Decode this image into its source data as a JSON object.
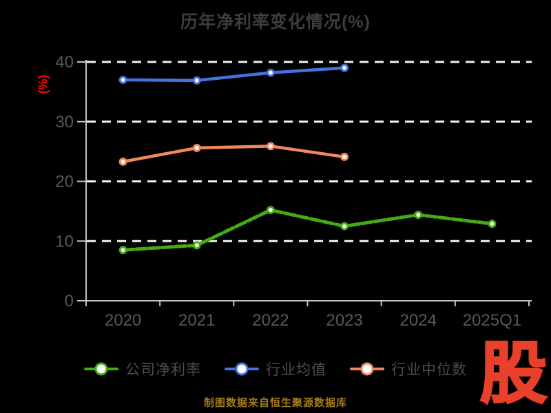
{
  "title": "历年净利率变化情况(%)",
  "y_axis": {
    "label": "(%)"
  },
  "caption": "制图数据来自恒生聚源数据库",
  "logo_text": "股",
  "colors": {
    "background": "#000000",
    "title_text": "#3d3d3d",
    "axis_line": "#c4c4c4",
    "gridline": "#f2f2f2",
    "tick_text": "#585858",
    "legend_text": "#4d4d4d",
    "y_label_red": "#f60505",
    "caption_gold": "#a57b15",
    "logo_red": "#e8402a",
    "marker_fill": "#ffffff"
  },
  "chart_data": {
    "type": "line",
    "title": "历年净利率变化情况(%)",
    "ylabel": "(%)",
    "ylim": [
      0,
      40
    ],
    "yticks": [
      0,
      10,
      20,
      30,
      40
    ],
    "grid": "horizontal dashed white lines at 10,20,30,40",
    "legend_position": "bottom",
    "categories": [
      "2020",
      "2021",
      "2022",
      "2023",
      "2024",
      "2025Q1"
    ],
    "series": [
      {
        "name": "公司净利率",
        "color": "#44aa16",
        "style": "dashed",
        "values": [
          8.5,
          9.3,
          15.2,
          12.5,
          14.4,
          12.9
        ]
      },
      {
        "name": "行业均值",
        "color": "#4472de",
        "style": "solid",
        "values": [
          37.0,
          36.9,
          38.2,
          39.0
        ]
      },
      {
        "name": "行业中位数",
        "color": "#f0885a",
        "style": "solid",
        "values": [
          23.3,
          25.6,
          25.9,
          24.1
        ]
      }
    ]
  }
}
